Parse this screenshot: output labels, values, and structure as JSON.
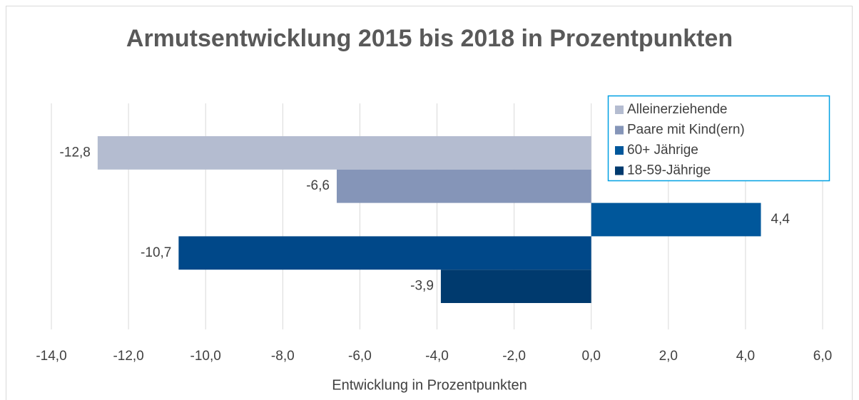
{
  "chart_data": {
    "type": "hbar",
    "title": "Armutsentwicklung 2015 bis 2018 in Prozentpunkten",
    "x_label": "Entwicklung in Prozentpunkten",
    "values": [
      -12.8,
      -6.6,
      4.4,
      -10.7,
      -3.9
    ],
    "value_labels": [
      "-12,8",
      "-6,6",
      "4,4",
      "-10,7",
      "-3,9"
    ],
    "colors": [
      "#b4bcd0",
      "#8595b8",
      "#00579b",
      "#004889",
      "#003a6e"
    ],
    "legend": [
      {
        "name": "Alleinerziehende",
        "color": "#b4bcd0"
      },
      {
        "name": "Paare mit Kind(ern)",
        "color": "#8595b8"
      },
      {
        "name": "60+ Jährige",
        "color": "#00579b"
      },
      {
        "name": "18-59-Jährige",
        "color": "#003a6e"
      }
    ],
    "xlim": [
      -14,
      6
    ],
    "xticks": [
      {
        "value": -14,
        "label": "-14,0"
      },
      {
        "value": -12,
        "label": "-12,0"
      },
      {
        "value": -10,
        "label": "-10,0"
      },
      {
        "value": -8,
        "label": "-8,0"
      },
      {
        "value": -6,
        "label": "-6,0"
      },
      {
        "value": -4,
        "label": "-4,0"
      },
      {
        "value": -2,
        "label": "-2,0"
      },
      {
        "value": 0,
        "label": "0,0"
      },
      {
        "value": 2,
        "label": "2,0"
      },
      {
        "value": 4,
        "label": "4,0"
      },
      {
        "value": 6,
        "label": "6,0"
      }
    ],
    "grid": true,
    "legend_position": "upper right"
  }
}
